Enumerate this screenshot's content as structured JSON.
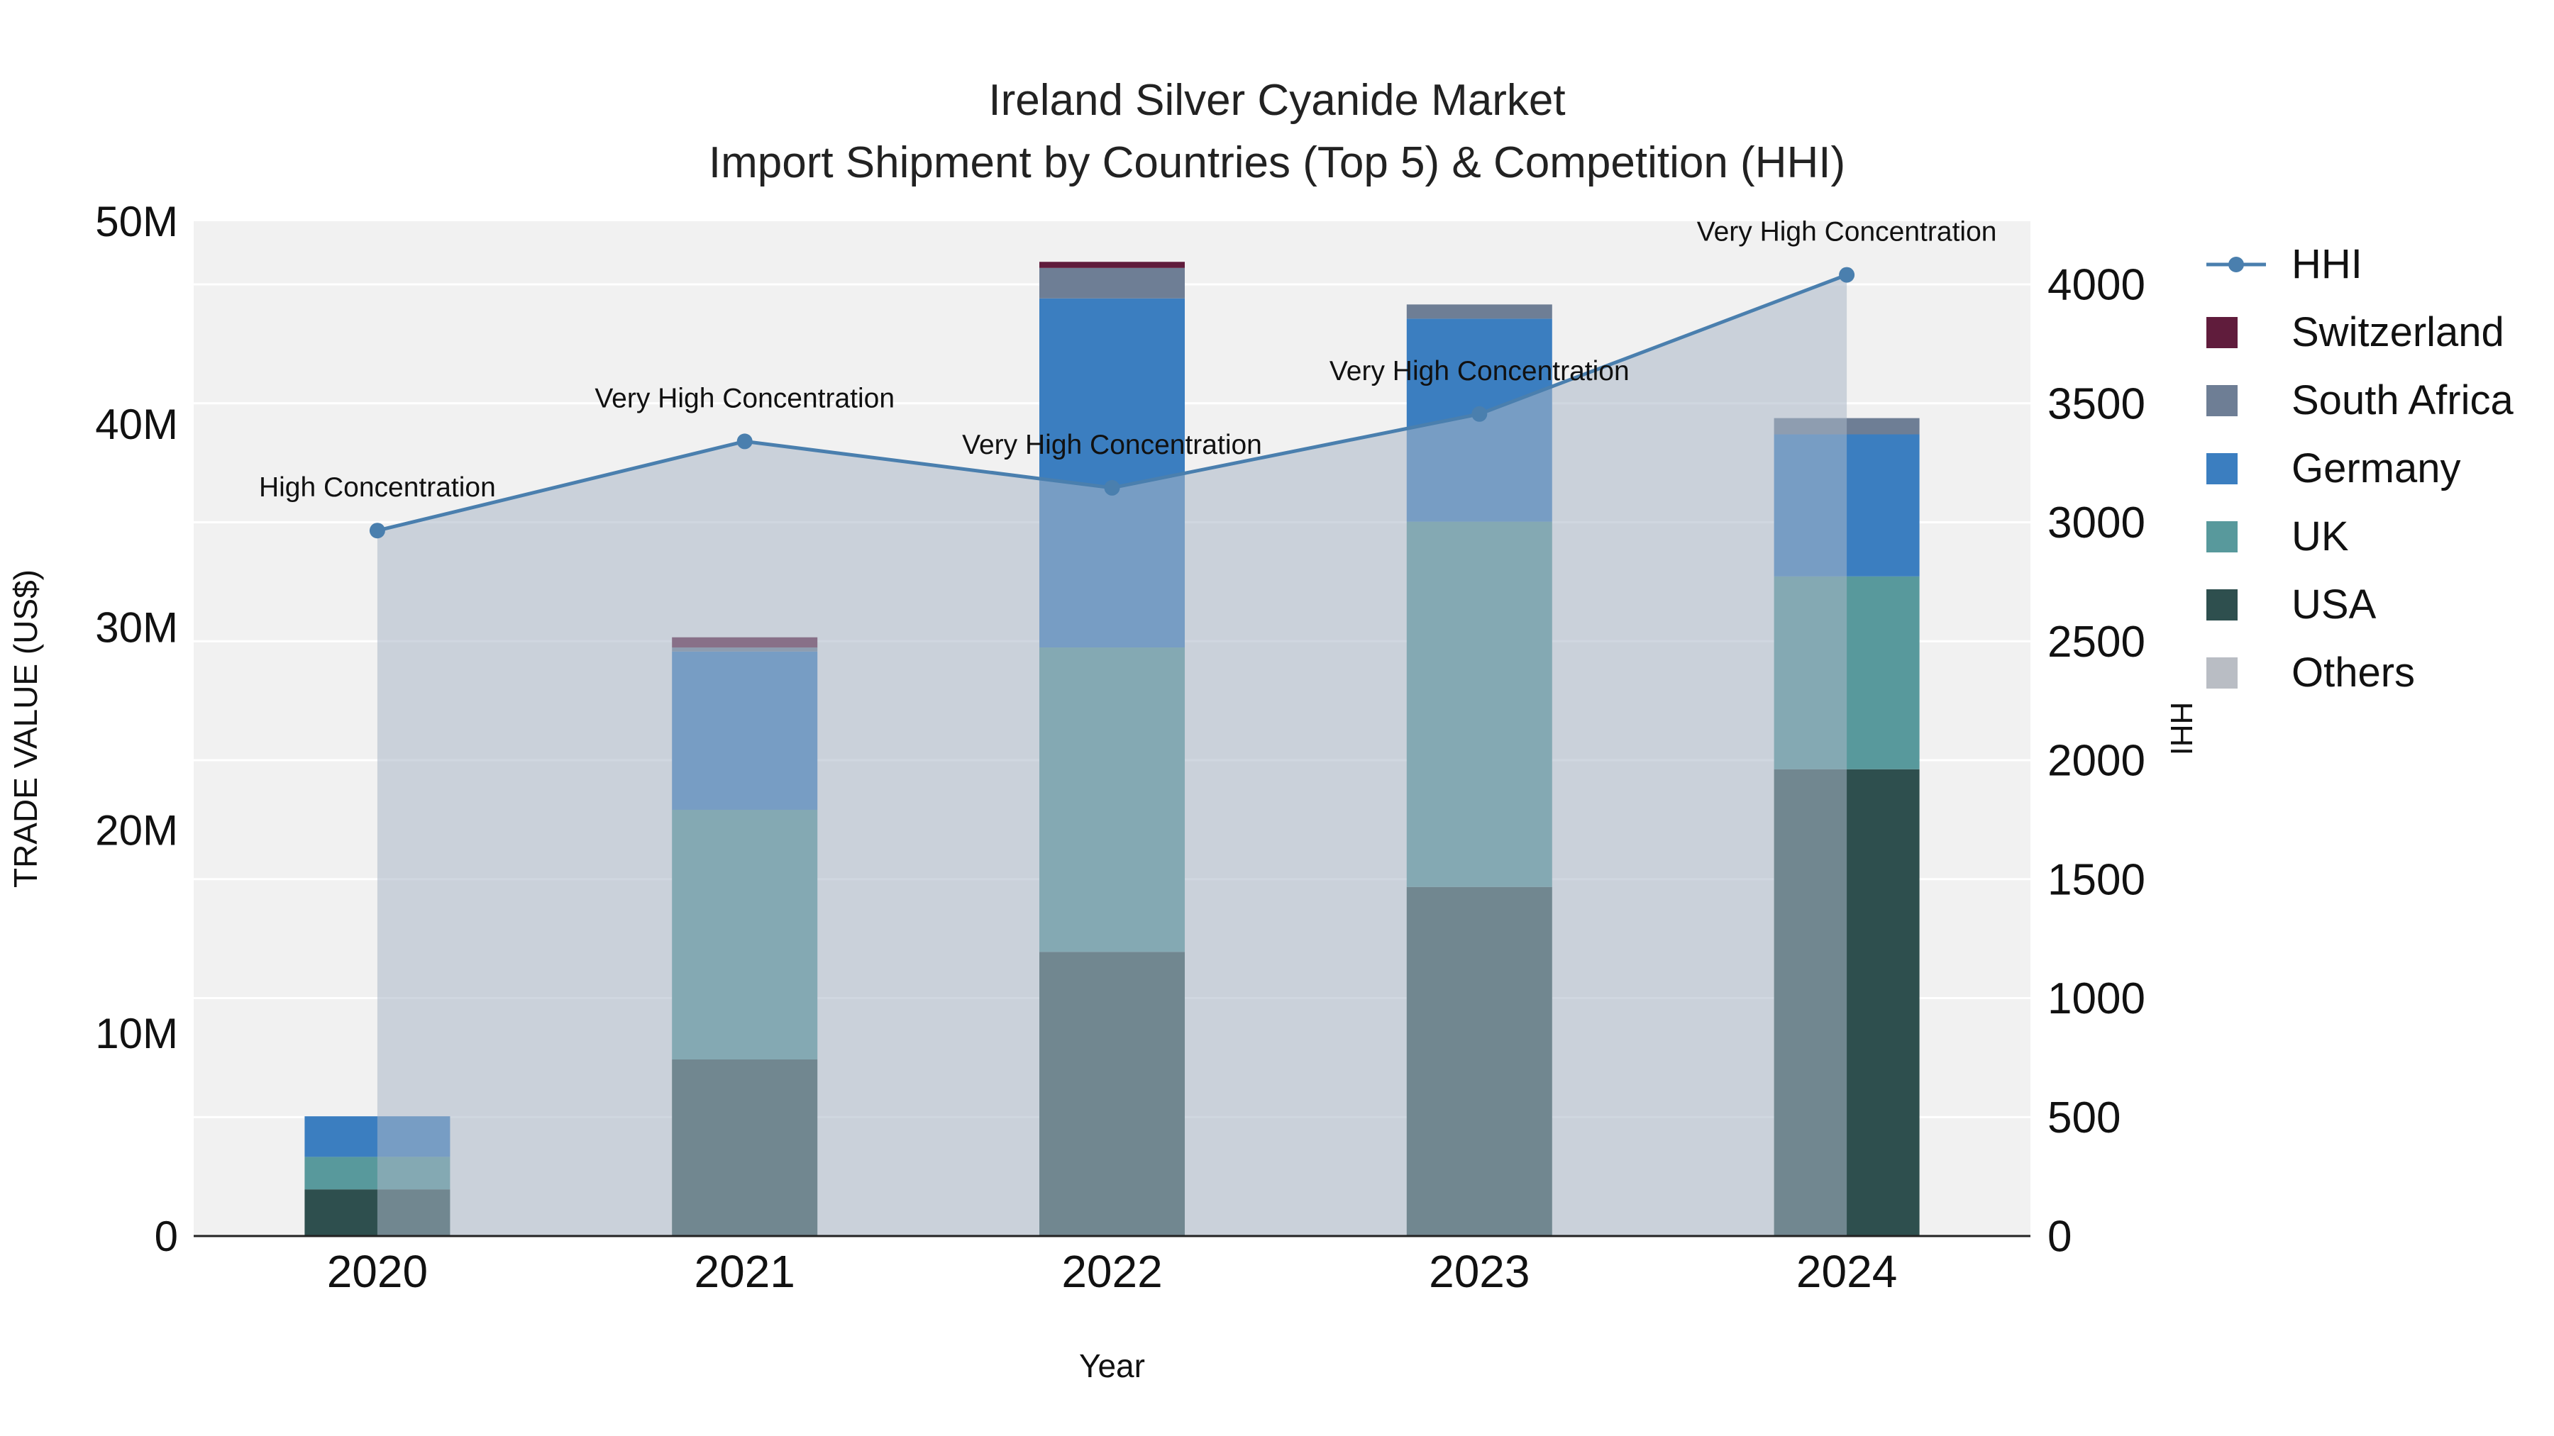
{
  "title": {
    "line1": "Ireland Silver Cyanide Market",
    "line2": "Import Shipment by Countries (Top 5) & Competition (HHI)"
  },
  "chart_data": {
    "type": "bar",
    "subtype": "stacked-bars-with-dual-axis-hhi-line-area",
    "x": [
      "2020",
      "2021",
      "2022",
      "2023",
      "2024"
    ],
    "x_label": "Year",
    "y_left": {
      "label": "TRADE VALUE (US$)",
      "tick_values_m": [
        0,
        10,
        20,
        30,
        40,
        50
      ],
      "tick_labels": [
        "0",
        "10M",
        "20M",
        "30M",
        "40M",
        "50M"
      ],
      "max_m": 50,
      "ylim": [
        0,
        50000000
      ]
    },
    "y_right": {
      "label": "HHI",
      "tick_values": [
        0,
        500,
        1000,
        1500,
        2000,
        2500,
        3000,
        3500,
        4000
      ],
      "tick_labels": [
        "0",
        "500",
        "1000",
        "1500",
        "2000",
        "2500",
        "3000",
        "3500",
        "4000"
      ],
      "tick_max_value": 4000
    },
    "bar_series": [
      {
        "name": "USA",
        "color": "#2e4f4e",
        "values_musd": [
          2.3,
          8.7,
          14.0,
          17.2,
          23.0
        ]
      },
      {
        "name": "UK",
        "color": "#58999c",
        "values_musd": [
          1.6,
          12.3,
          15.0,
          18.0,
          9.5
        ]
      },
      {
        "name": "Germany",
        "color": "#3b7ec0",
        "values_musd": [
          2.0,
          7.8,
          17.2,
          10.0,
          7.0
        ]
      },
      {
        "name": "South Africa",
        "color": "#6e7e95",
        "values_musd": [
          0,
          0.2,
          1.5,
          0.7,
          0.8
        ]
      },
      {
        "name": "Switzerland",
        "color": "#601c3c",
        "values_musd": [
          0,
          0.5,
          0.3,
          0,
          0
        ]
      },
      {
        "name": "Others",
        "color": "#b9bdc4",
        "values_musd": [
          0,
          0,
          0,
          0,
          0
        ]
      }
    ],
    "hhi": {
      "name": "HHI",
      "color": "#4a7fae",
      "area_fill": "#aab6c6",
      "area_opacity": 0.55,
      "values": [
        2965,
        3340,
        3145,
        3455,
        4040
      ]
    },
    "annotations": [
      "High Concentration",
      "Very High Concentration",
      "Very High Concentration",
      "Very High Concentration",
      "Very High Concentration"
    ],
    "legend_order": [
      "HHI",
      "Switzerland",
      "South Africa",
      "Germany",
      "UK",
      "USA",
      "Others"
    ],
    "plot_bg": "#f1f1f1",
    "grid_color": "#ffffff"
  }
}
